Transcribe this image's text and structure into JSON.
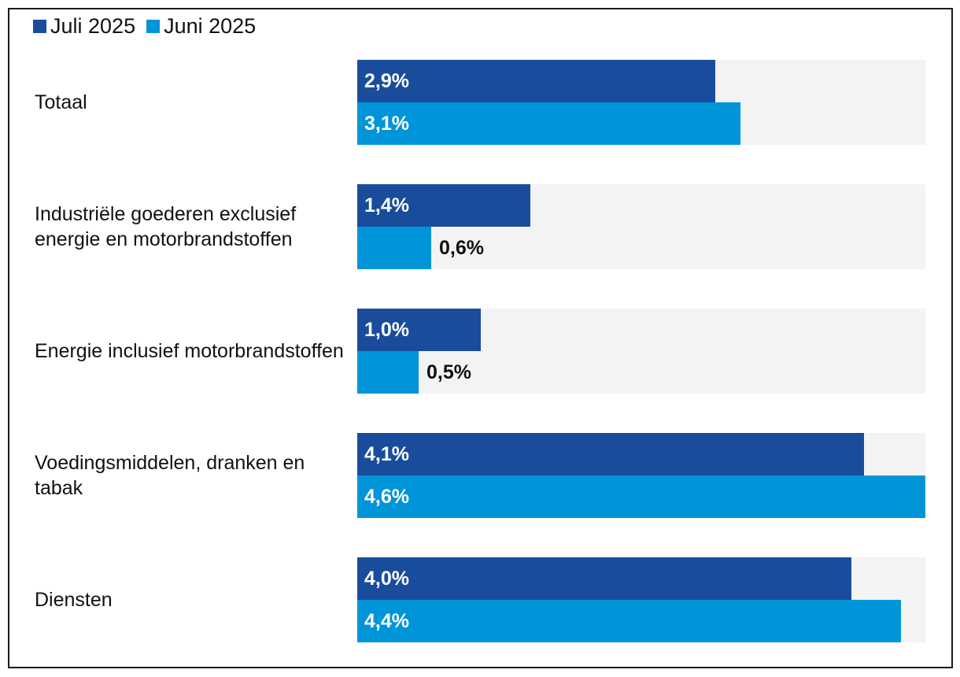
{
  "chart_data": {
    "type": "bar",
    "orientation": "horizontal",
    "title": "",
    "xlabel": "",
    "ylabel": "",
    "xlim": [
      0,
      4.6
    ],
    "grid": false,
    "legend_position": "top-left",
    "categories": [
      "Totaal",
      "Industriële goederen exclusief energie en motorbrandstoffen",
      "Energie inclusief motorbrandstoffen",
      "Voedingsmiddelen, dranken en tabak",
      "Diensten"
    ],
    "series": [
      {
        "name": "Juli 2025",
        "color": "#1a4c9c",
        "values": [
          2.9,
          1.4,
          1.0,
          4.1,
          4.0
        ],
        "labels": [
          "2,9%",
          "1,4%",
          "1,0%",
          "4,1%",
          "4,0%"
        ]
      },
      {
        "name": "Juni 2025",
        "color": "#0095d9",
        "values": [
          3.1,
          0.6,
          0.5,
          4.6,
          4.4
        ],
        "labels": [
          "3,1%",
          "0,6%",
          "0,5%",
          "4,6%",
          "4,4%"
        ]
      }
    ],
    "track_color": "#f3f3f3"
  }
}
